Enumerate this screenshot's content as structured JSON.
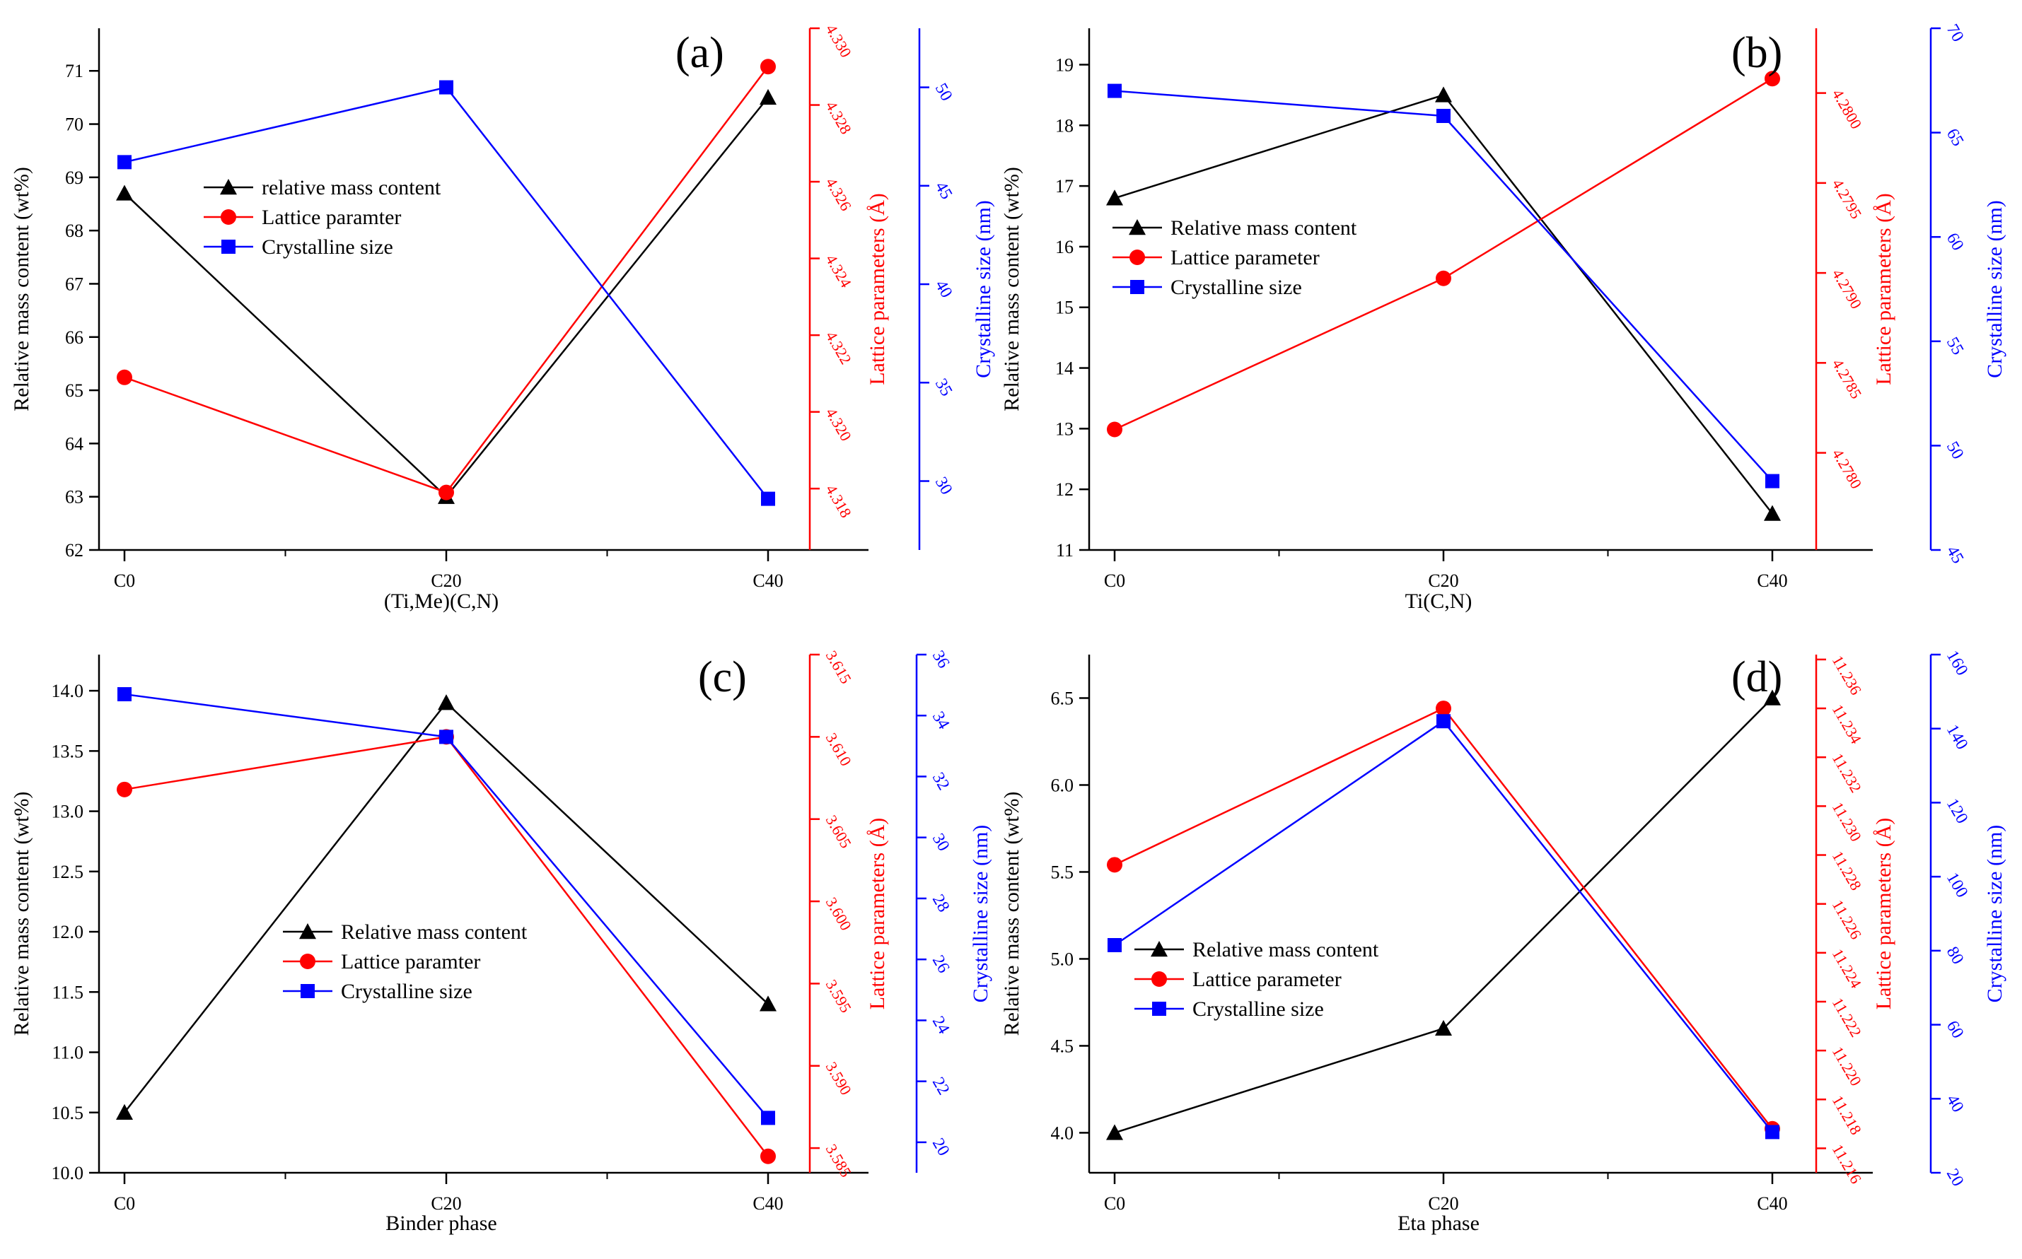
{
  "colors": {
    "black": "#000000",
    "red": "#ff0000",
    "blue": "#0000ff"
  },
  "chart_data": [
    {
      "type": "line",
      "panel_label": "(a)",
      "xlabel": "(Ti,Me)(C,N)",
      "categories": [
        "C0",
        "C20",
        "C40"
      ],
      "ylabel_left": "Relative mass content (wt%)",
      "ylabel_right1": "Lattice parameters (Å)",
      "ylabel_right2": "Crystalline size (nm)",
      "ylim_left": [
        62,
        71.8
      ],
      "yticks_left": [
        "62",
        "63",
        "64",
        "65",
        "66",
        "67",
        "68",
        "69",
        "70",
        "71"
      ],
      "ylim_right1": [
        4.3164,
        4.33
      ],
      "yticks_right1": [
        "4.318",
        "4.320",
        "4.322",
        "4.324",
        "4.326",
        "4.328",
        "4.330"
      ],
      "ylim_right2": [
        26.5,
        53.0
      ],
      "yticks_right2": [
        "30",
        "35",
        "40",
        "45",
        "50"
      ],
      "legend": [
        "relative mass content",
        "Lattice paramter",
        "Crystalline size"
      ],
      "series": [
        {
          "name": "relative mass content",
          "axis": "left",
          "marker": "triangle",
          "color": "#000000",
          "values": [
            68.7,
            63.0,
            70.5
          ]
        },
        {
          "name": "Lattice paramter",
          "axis": "right1",
          "marker": "circle",
          "color": "#ff0000",
          "values": [
            4.3209,
            4.3179,
            4.329
          ]
        },
        {
          "name": "Crystalline size",
          "axis": "right2",
          "marker": "square",
          "color": "#0000ff",
          "values": [
            46.2,
            50.0,
            29.1
          ]
        }
      ]
    },
    {
      "type": "line",
      "panel_label": "(b)",
      "xlabel": "Ti(C,N)",
      "categories": [
        "C0",
        "C20",
        "C40"
      ],
      "ylabel_left": "Relative mass content (wt%)",
      "ylabel_right1": "Lattice parameters (Å)",
      "ylabel_right2": "Crystalline size (nm)",
      "ylim_left": [
        11,
        19.6
      ],
      "yticks_left": [
        "11",
        "12",
        "13",
        "14",
        "15",
        "16",
        "17",
        "18",
        "19"
      ],
      "ylim_right1": [
        4.27746,
        4.28036
      ],
      "yticks_right1": [
        "4.2780",
        "4.2785",
        "4.2790",
        "4.2795",
        "4.2800"
      ],
      "ylim_right2": [
        45,
        70
      ],
      "yticks_right2": [
        "45",
        "50",
        "55",
        "60",
        "65",
        "70"
      ],
      "legend": [
        "Relative mass content",
        "Lattice parameter",
        "Crystalline size"
      ],
      "series": [
        {
          "name": "Relative mass content",
          "axis": "left",
          "marker": "triangle",
          "color": "#000000",
          "values": [
            16.8,
            18.5,
            11.6
          ]
        },
        {
          "name": "Lattice parameter",
          "axis": "right1",
          "marker": "circle",
          "color": "#ff0000",
          "values": [
            4.27813,
            4.27897,
            4.28008
          ]
        },
        {
          "name": "Crystalline size",
          "axis": "right2",
          "marker": "square",
          "color": "#0000ff",
          "values": [
            67.0,
            65.8,
            48.3
          ]
        }
      ]
    },
    {
      "type": "line",
      "panel_label": "(c)",
      "xlabel": "Binder phase",
      "categories": [
        "C0",
        "C20",
        "C40"
      ],
      "ylabel_left": "Relative mass content (wt%)",
      "ylabel_right1": "Lattice parameters (Å)",
      "ylabel_right2": "Crystalline size (nm)",
      "ylim_left": [
        10,
        14.3
      ],
      "yticks_left": [
        "10.0",
        "10.5",
        "11.0",
        "11.5",
        "12.0",
        "12.5",
        "13.0",
        "13.5",
        "14.0"
      ],
      "ylim_right1": [
        3.5835,
        3.615
      ],
      "yticks_right1": [
        "3.585",
        "3.590",
        "3.595",
        "3.600",
        "3.605",
        "3.610",
        "3.615"
      ],
      "ylim_right2": [
        19,
        36
      ],
      "yticks_right2": [
        "20",
        "22",
        "24",
        "26",
        "28",
        "30",
        "32",
        "34",
        "36"
      ],
      "legend": [
        "Relative mass content",
        "Lattice paramter",
        "Crystalline size"
      ],
      "series": [
        {
          "name": "Relative mass content",
          "axis": "left",
          "marker": "triangle",
          "color": "#000000",
          "values": [
            10.5,
            13.9,
            11.4
          ]
        },
        {
          "name": "Lattice paramter",
          "axis": "right1",
          "marker": "circle",
          "color": "#ff0000",
          "values": [
            3.6068,
            3.61,
            3.5845
          ]
        },
        {
          "name": "Crystalline size",
          "axis": "right2",
          "marker": "square",
          "color": "#0000ff",
          "values": [
            34.7,
            33.3,
            20.8
          ]
        }
      ]
    },
    {
      "type": "line",
      "panel_label": "(d)",
      "xlabel": "Eta phase",
      "categories": [
        "C0",
        "C20",
        "C40"
      ],
      "ylabel_left": "Relative mass content (wt%)",
      "ylabel_right1": "Lattice parameters (Å)",
      "ylabel_right2": "Crystalline size (nm)",
      "ylim_left": [
        3.77,
        6.75
      ],
      "yticks_left": [
        "4.0",
        "4.5",
        "5.0",
        "5.5",
        "6.0",
        "6.5"
      ],
      "ylim_right1": [
        11.215,
        11.2362
      ],
      "yticks_right1": [
        "11.216",
        "11.218",
        "11.220",
        "11.222",
        "11.224",
        "11.226",
        "11.228",
        "11.230",
        "11.232",
        "11.234",
        "11.236"
      ],
      "ylim_right2": [
        20,
        160
      ],
      "yticks_right2": [
        "20",
        "40",
        "60",
        "80",
        "100",
        "120",
        "140",
        "160"
      ],
      "legend": [
        "Relative mass content",
        "Lattice parameter",
        "Crystalline size"
      ],
      "series": [
        {
          "name": "Relative mass content",
          "axis": "left",
          "marker": "triangle",
          "color": "#000000",
          "values": [
            4.0,
            4.6,
            6.5
          ]
        },
        {
          "name": "Lattice parameter",
          "axis": "right1",
          "marker": "circle",
          "color": "#ff0000",
          "values": [
            11.2276,
            11.234,
            11.2168
          ]
        },
        {
          "name": "Crystalline size",
          "axis": "right2",
          "marker": "square",
          "color": "#0000ff",
          "values": [
            81.5,
            142.0,
            31.0
          ]
        }
      ]
    }
  ]
}
